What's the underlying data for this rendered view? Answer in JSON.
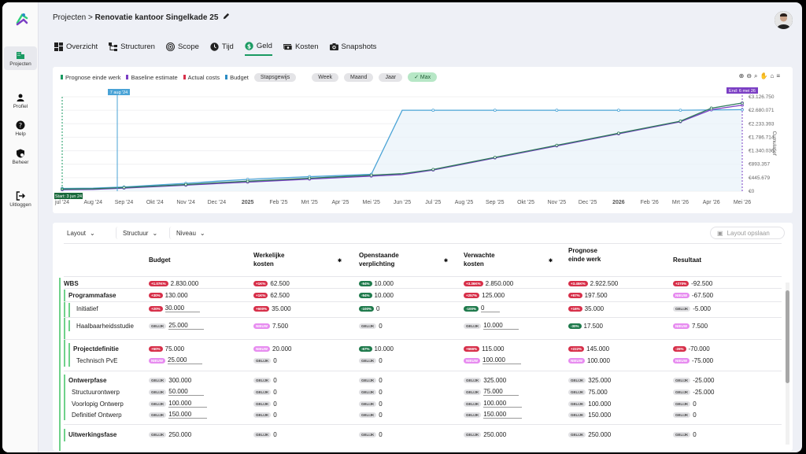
{
  "sidebar": {
    "items": [
      {
        "label": "Projecten",
        "icon": "building-icon"
      },
      {
        "label": "Profiel",
        "icon": "person-icon"
      },
      {
        "label": "Help",
        "icon": "help-icon"
      },
      {
        "label": "Beheer",
        "icon": "shield-gear-icon"
      },
      {
        "label": "Uitloggen",
        "icon": "logout-icon"
      }
    ]
  },
  "header": {
    "crumb": "Projecten",
    "sep": ">",
    "project": "Renovatie kantoor Singelkade 25"
  },
  "tabs": [
    {
      "label": "Overzicht",
      "icon": "dashboard-icon"
    },
    {
      "label": "Structuren",
      "icon": "structure-icon"
    },
    {
      "label": "Scope",
      "icon": "target-icon"
    },
    {
      "label": "Tijd",
      "icon": "clock-icon"
    },
    {
      "label": "Geld",
      "icon": "dollar-icon",
      "active": true
    },
    {
      "label": "Kosten",
      "icon": "money-icon"
    },
    {
      "label": "Snapshots",
      "icon": "camera-icon"
    }
  ],
  "legend": {
    "items": [
      {
        "label": "Prognose einde werk",
        "color": "#1a9a62"
      },
      {
        "label": "Baseline estimate",
        "color": "#7b3fc4"
      },
      {
        "label": "Actual costs",
        "color": "#d7304a"
      },
      {
        "label": "Budget",
        "color": "#2b8cc4"
      }
    ],
    "budget_mode": "Stapsgewijs",
    "periods": [
      "Week",
      "Maand",
      "Jaar",
      "Max"
    ],
    "active_period": "Max"
  },
  "colors": {
    "accent": "#1a9a62",
    "budget": "#4aa3d6",
    "baseline": "#7b3fc4",
    "prognose": "#2d7a5a"
  },
  "chart_data": {
    "type": "line",
    "x": [
      "jul '24",
      "Aug '24",
      "Sep '24",
      "Okt '24",
      "Nov '24",
      "Dec '24",
      "2025",
      "Feb '25",
      "Mrt '25",
      "Apr '25",
      "Mei '25",
      "Jun '25",
      "Jul '25",
      "Aug '25",
      "Sep '25",
      "Okt '25",
      "Nov '25",
      "Dec '25",
      "2026",
      "Feb '26",
      "Mrt '26",
      "Apr '26",
      "Mei '26"
    ],
    "y_ticks": [
      "€3.126.750",
      "€2.680.071",
      "€2.233.393",
      "€1.786.714",
      "€1.340.036",
      "€893.357",
      "€445.679",
      "€0"
    ],
    "ylabel": "Cumulatief",
    "ylim": [
      0,
      3126750
    ],
    "markers": {
      "today": "7 aug '24",
      "start": "Start: 3 jun 24",
      "end": "End: 6 mei 26"
    },
    "series": [
      {
        "name": "Budget",
        "values": [
          90000,
          100000,
          140000,
          200000,
          260000,
          330000,
          390000,
          440000,
          480000,
          520000,
          560000,
          2680000,
          2680000,
          2680000,
          2680000,
          2680000,
          2680000,
          2680000,
          2680000,
          2680000,
          2680000,
          2690000,
          2700000
        ]
      },
      {
        "name": "Baseline estimate",
        "values": [
          50000,
          60000,
          100000,
          150000,
          200000,
          250000,
          300000,
          350000,
          400000,
          450000,
          500000,
          550000,
          700000,
          900000,
          1100000,
          1300000,
          1500000,
          1700000,
          1900000,
          2100000,
          2300000,
          2700000,
          2850000
        ]
      },
      {
        "name": "Prognose einde werk",
        "values": [
          70000,
          80000,
          120000,
          170000,
          220000,
          280000,
          330000,
          380000,
          430000,
          480000,
          530000,
          580000,
          720000,
          920000,
          1120000,
          1320000,
          1520000,
          1720000,
          1920000,
          2120000,
          2320000,
          2750000,
          2922500
        ]
      }
    ]
  },
  "toolbar": {
    "layout": "Layout",
    "structuur": "Structuur",
    "niveau": "Niveau",
    "save": "Layout opslaan"
  },
  "columns": [
    {
      "label": "Budget"
    },
    {
      "label": "Werkelijke kosten"
    },
    {
      "label": "Openstaande verplichting"
    },
    {
      "label": "Verwachte kosten"
    },
    {
      "label": "Prognose einde werk"
    },
    {
      "label": "Resultaat"
    }
  ],
  "rows": [
    {
      "name": "WBS",
      "bold": true,
      "top": 0,
      "cells": [
        [
          "+1.07K%",
          "red",
          "2.830.000"
        ],
        [
          "+1K%",
          "red",
          "62.500"
        ],
        [
          "-94%",
          "grn",
          "10.000"
        ],
        [
          "+3.36K%",
          "red",
          "2.850.000"
        ],
        [
          "+3.45K%",
          "red",
          "2.922.500"
        ],
        [
          "+270%",
          "red",
          "-92.500"
        ]
      ]
    },
    {
      "name": "Programmafase",
      "bold": true,
      "top": 15,
      "cells": [
        [
          "+30%",
          "red",
          "130.000"
        ],
        [
          "+1K%",
          "red",
          "62.500"
        ],
        [
          "-94%",
          "grn",
          "10.000"
        ],
        [
          "+257%",
          "red",
          "125.000"
        ],
        [
          "+97%",
          "red",
          "197.500"
        ],
        [
          "NIEUW",
          "pur",
          "-67.500"
        ]
      ]
    },
    {
      "name": "Initiatief",
      "top": 32,
      "cells": [
        [
          "+20%",
          "red",
          "30.000"
        ],
        [
          "+600%",
          "red",
          "35.000"
        ],
        [
          "-100%",
          "grn",
          "0"
        ],
        [
          "-100%",
          "grn",
          "0"
        ],
        [
          "+16%",
          "red",
          "35.000"
        ],
        [
          "GELIJK",
          "gry",
          "-5.000"
        ]
      ]
    },
    {
      "name": "Haalbaarheidsstudie",
      "top": 54,
      "cells": [
        [
          "GELIJK",
          "gry",
          "25.000"
        ],
        [
          "NIEUW",
          "pur",
          "7.500"
        ],
        [
          "GELIJK",
          "gry",
          "0"
        ],
        [
          "GELIJK",
          "gry",
          "10.000"
        ],
        [
          "-30%",
          "grn",
          "17.500"
        ],
        [
          "NIEUW",
          "pur",
          "7.500"
        ]
      ]
    },
    {
      "name": "Projectdefinitie",
      "bold": true,
      "top": 83,
      "cells": [
        [
          "+50%",
          "red",
          "75.000"
        ],
        [
          "NIEUW",
          "pur",
          "20.000"
        ],
        [
          "-67%",
          "grn",
          "10.000"
        ],
        [
          "+666%",
          "red",
          "115.000"
        ],
        [
          "+222%",
          "red",
          "145.000"
        ],
        [
          "-26%",
          "red",
          "-70.000"
        ]
      ]
    },
    {
      "name": "Technisch PvE",
      "top": 98,
      "cells": [
        [
          "NIEUW",
          "pur",
          "25.000"
        ],
        [
          "GELIJK",
          "gry",
          "0"
        ],
        [
          "GELIJK",
          "gry",
          "0"
        ],
        [
          "NIEUW",
          "pur",
          "100.000"
        ],
        [
          "NIEUW",
          "pur",
          "100.000"
        ],
        [
          "NIEUW",
          "pur",
          "-75.000"
        ]
      ]
    },
    {
      "name": "Ontwerpfase",
      "bold": true,
      "top": 123,
      "cells": [
        [
          "GELIJK",
          "gry",
          "300.000"
        ],
        [
          "GELIJK",
          "gry",
          "0"
        ],
        [
          "GELIJK",
          "gry",
          "0"
        ],
        [
          "GELIJK",
          "gry",
          "325.000"
        ],
        [
          "GELIJK",
          "gry",
          "325.000"
        ],
        [
          "GELIJK",
          "gry",
          "-25.000"
        ]
      ]
    },
    {
      "name": "Structuurontwerp",
      "top": 138,
      "cells": [
        [
          "GELIJK",
          "gry",
          "50.000"
        ],
        [
          "GELIJK",
          "gry",
          "0"
        ],
        [
          "GELIJK",
          "gry",
          "0"
        ],
        [
          "GELIJK",
          "gry",
          "75.000"
        ],
        [
          "GELIJK",
          "gry",
          "75.000"
        ],
        [
          "GELIJK",
          "gry",
          "-25.000"
        ]
      ]
    },
    {
      "name": "Voorlopig Ontwerp",
      "top": 153,
      "cells": [
        [
          "GELIJK",
          "gry",
          "100.000"
        ],
        [
          "GELIJK",
          "gry",
          "0"
        ],
        [
          "GELIJK",
          "gry",
          "0"
        ],
        [
          "GELIJK",
          "gry",
          "100.000"
        ],
        [
          "GELIJK",
          "gry",
          "100.000"
        ],
        [
          "GELIJK",
          "gry",
          "0"
        ]
      ]
    },
    {
      "name": "Definitief Ontwerp",
      "top": 167,
      "cells": [
        [
          "GELIJK",
          "gry",
          "150.000"
        ],
        [
          "GELIJK",
          "gry",
          "0"
        ],
        [
          "GELIJK",
          "gry",
          "0"
        ],
        [
          "GELIJK",
          "gry",
          "150.000"
        ],
        [
          "GELIJK",
          "gry",
          "150.000"
        ],
        [
          "GELIJK",
          "gry",
          "0"
        ]
      ]
    },
    {
      "name": "Uitwerkingsfase",
      "bold": true,
      "top": 192,
      "cells": [
        [
          "GELIJK",
          "gry",
          "250.000"
        ],
        [
          "GELIJK",
          "gry",
          "0"
        ],
        [
          "GELIJK",
          "gry",
          "0"
        ],
        [
          "GELIJK",
          "gry",
          "250.000"
        ],
        [
          "GELIJK",
          "gry",
          "250.000"
        ],
        [
          "GELIJK",
          "gry",
          "0"
        ]
      ]
    }
  ]
}
